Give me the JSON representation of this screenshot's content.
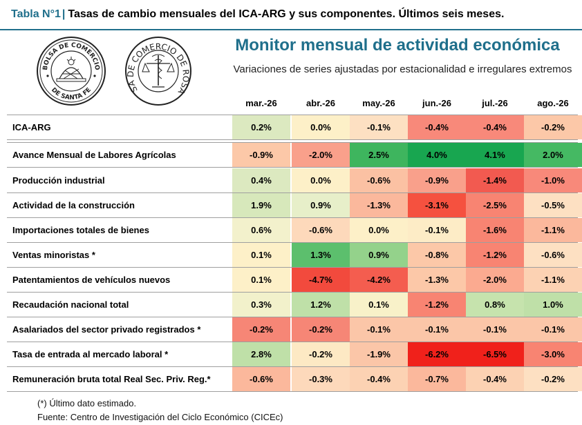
{
  "header": {
    "prefix": "Tabla N°1",
    "separator": "|",
    "title": "Tasas de cambio mensuales del ICA-ARG y sus componentes. Últimos seis meses."
  },
  "logos": {
    "left": {
      "top_text": "BOLSA DE COMERCIO",
      "bottom_text": "DE SANTA FE"
    },
    "right": {
      "text": "BOLSA DE COMERCIO DE ROSARIO"
    }
  },
  "monitor": {
    "title": "Monitor mensual de actividad económica",
    "subtitle": "Variaciones de series ajustadas por estacionalidad e irregulares extremos"
  },
  "months": [
    "mar.-26",
    "abr.-26",
    "may.-26",
    "jun.-26",
    "jul.-26",
    "ago.-26"
  ],
  "rows": [
    {
      "label": "ICA-ARG",
      "values": [
        "0.2%",
        "0.0%",
        "-0.1%",
        "-0.4%",
        "-0.4%",
        "-0.2%"
      ],
      "colors": [
        "#dce9c0",
        "#fdf0c8",
        "#fde0c2",
        "#f8897a",
        "#f8897a",
        "#fcc8a8"
      ]
    },
    {
      "label": "Avance Mensual de Labores Agrícolas",
      "values": [
        "-0.9%",
        "-2.0%",
        "2.5%",
        "4.0%",
        "4.1%",
        "2.0%"
      ],
      "colors": [
        "#fcc8a8",
        "#f9a08b",
        "#3eb55e",
        "#18a650",
        "#18a650",
        "#45b963"
      ]
    },
    {
      "label": "Producción industrial",
      "values": [
        "0.4%",
        "0.0%",
        "-0.6%",
        "-0.9%",
        "-1.4%",
        "-1.0%"
      ],
      "colors": [
        "#dce9c0",
        "#fdf0c8",
        "#fbc1a3",
        "#f9a08b",
        "#f25a50",
        "#f8897a"
      ]
    },
    {
      "label": "Actividad de la construcción",
      "values": [
        "1.9%",
        "0.9%",
        "-1.3%",
        "-3.1%",
        "-2.5%",
        "-0.5%"
      ],
      "colors": [
        "#d7e8bb",
        "#e7efc9",
        "#fbb89c",
        "#f5513f",
        "#f88472",
        "#fde0c2"
      ]
    },
    {
      "label": "Importaciones totales de bienes",
      "values": [
        "0.6%",
        "-0.6%",
        "0.0%",
        "-0.1%",
        "-1.6%",
        "-1.1%"
      ],
      "colors": [
        "#f3f1cc",
        "#fdd9bb",
        "#fdf0c8",
        "#fdecc6",
        "#f88472",
        "#fbb89c"
      ]
    },
    {
      "label": "Ventas minoristas *",
      "values": [
        "0.1%",
        "1.3%",
        "0.9%",
        "-0.8%",
        "-1.2%",
        "-0.6%"
      ],
      "colors": [
        "#fdf0c8",
        "#5cbf6d",
        "#94d28b",
        "#fcc8a8",
        "#f88472",
        "#fde0c2"
      ]
    },
    {
      "label": "Patentamientos de vehículos nuevos",
      "values": [
        "0.1%",
        "-4.7%",
        "-4.2%",
        "-1.3%",
        "-2.0%",
        "-1.1%"
      ],
      "colors": [
        "#fdf0c8",
        "#f24a3d",
        "#f45d4f",
        "#fcc8a8",
        "#fbaa90",
        "#fcd2b3"
      ]
    },
    {
      "label": "Recaudación nacional total",
      "values": [
        "0.3%",
        "1.2%",
        "0.1%",
        "-1.2%",
        "0.8%",
        "1.0%"
      ],
      "colors": [
        "#f2f1cb",
        "#bfe0a8",
        "#f8f1c9",
        "#f88472",
        "#c6e3ad",
        "#bfe0a8"
      ]
    },
    {
      "label": "Asalariados del sector privado registrados *",
      "values": [
        "-0.2%",
        "-0.2%",
        "-0.1%",
        "-0.1%",
        "-0.1%",
        "-0.1%"
      ],
      "colors": [
        "#f68676",
        "#f68676",
        "#fbc6a8",
        "#fbc6a8",
        "#fbc6a8",
        "#fbc6a8"
      ]
    },
    {
      "label": "Tasa de entrada al mercado laboral *",
      "values": [
        "2.8%",
        "-0.2%",
        "-1.9%",
        "-6.2%",
        "-6.5%",
        "-3.0%"
      ],
      "colors": [
        "#bfe0a8",
        "#fde9c4",
        "#fbc6a8",
        "#f0211b",
        "#f0211b",
        "#f88472"
      ]
    },
    {
      "label": "Remuneración bruta total Real Sec. Priv. Reg.*",
      "values": [
        "-0.6%",
        "-0.3%",
        "-0.4%",
        "-0.7%",
        "-0.4%",
        "-0.2%"
      ],
      "colors": [
        "#fbb89c",
        "#fdd9bb",
        "#fcd2b3",
        "#fbb89c",
        "#fcd2b3",
        "#fde0c2"
      ]
    }
  ],
  "footnotes": {
    "estimated": "(*) Último dato estimado.",
    "source": "Fuente: Centro de Investigación del Ciclo Económico (CICEc)"
  }
}
